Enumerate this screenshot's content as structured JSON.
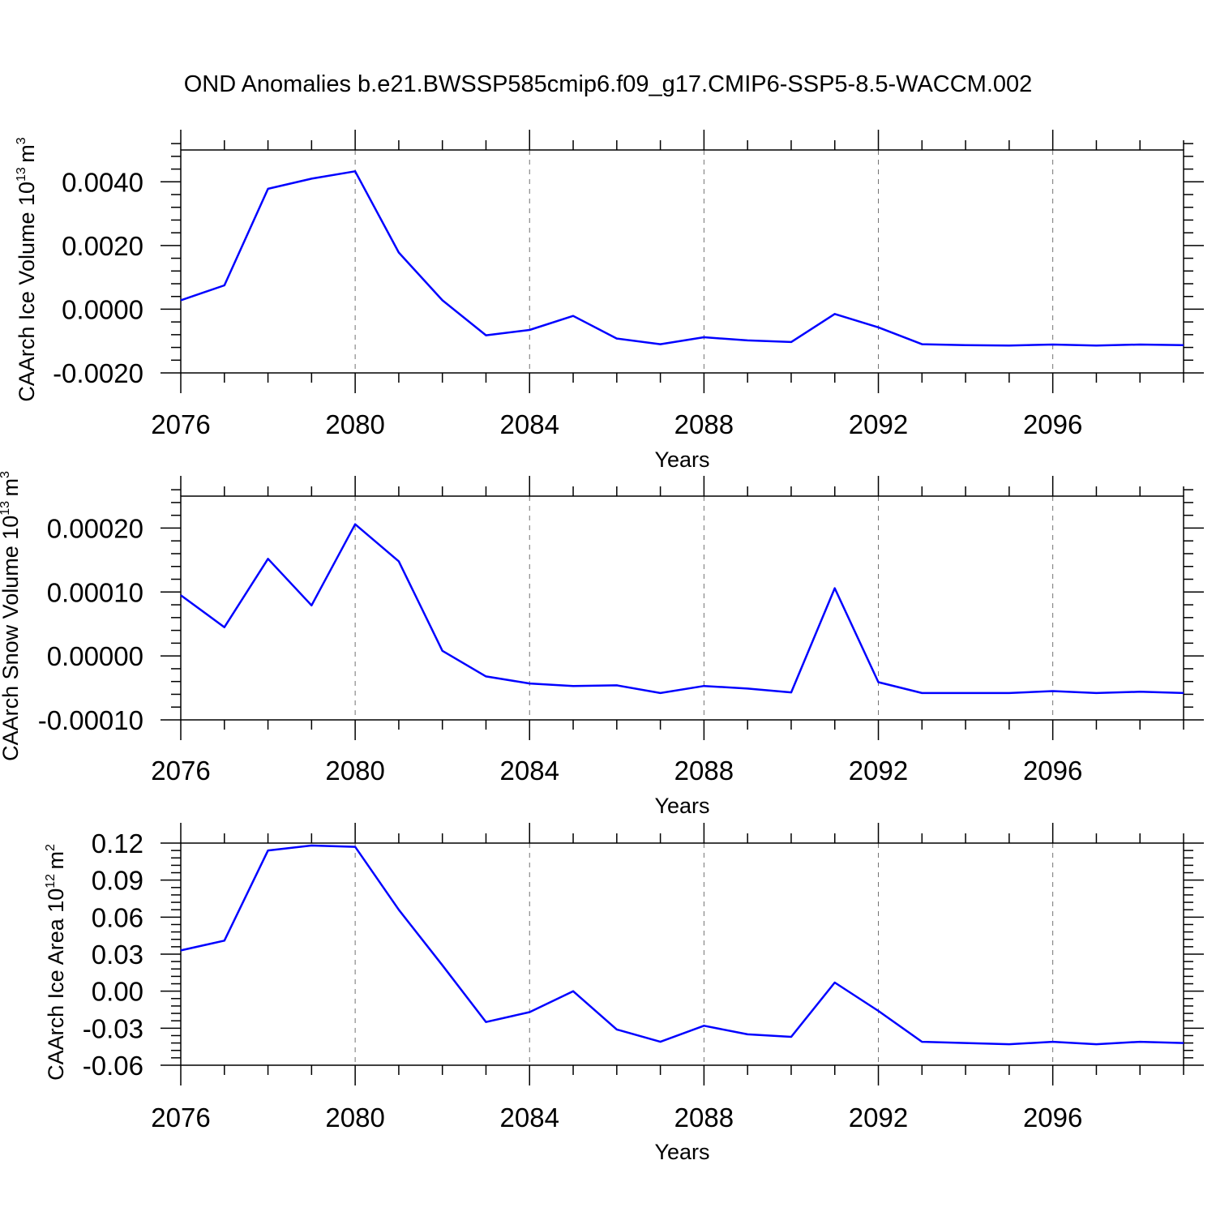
{
  "page": {
    "title": "OND Anomalies b.e21.BWSSP585cmip6.f09_g17.CMIP6-SSP5-8.5-WACCM.002"
  },
  "colors": {
    "series": "#0000ff",
    "axes": "#000000"
  },
  "chart_data": [
    {
      "type": "line",
      "ylabel_main": "CAArch Ice Volume 10",
      "ylabel_exp": "13",
      "ylabel_unit": "m",
      "ylabel_unit_exp": "3",
      "xlabel": "Years",
      "xlim": [
        2076,
        2099
      ],
      "ylim": [
        -0.002,
        0.005
      ],
      "xticks": [
        2076,
        2080,
        2084,
        2088,
        2092,
        2096
      ],
      "xtick_labels": [
        "2076",
        "2080",
        "2084",
        "2088",
        "2092",
        "2096"
      ],
      "yticks": [
        -0.002,
        0.0,
        0.002,
        0.004
      ],
      "ytick_labels": [
        "-0.0020",
        "0.0000",
        "0.0020",
        "0.0040"
      ],
      "grid": "vertical dashed at major x ticks",
      "x": [
        2076,
        2077,
        2078,
        2079,
        2080,
        2081,
        2082,
        2083,
        2084,
        2085,
        2086,
        2087,
        2088,
        2089,
        2090,
        2091,
        2092,
        2093,
        2094,
        2095,
        2096,
        2097,
        2098,
        2099
      ],
      "series": [
        {
          "values": [
            0.00028,
            0.00075,
            0.00378,
            0.0041,
            0.00433,
            0.00178,
            0.00028,
            -0.00082,
            -0.00065,
            -0.00021,
            -0.00092,
            -0.0011,
            -0.00088,
            -0.00098,
            -0.00103,
            -0.00015,
            -0.00057,
            -0.0011,
            -0.00113,
            -0.00114,
            -0.00111,
            -0.00114,
            -0.00111,
            -0.00113
          ]
        }
      ]
    },
    {
      "type": "line",
      "ylabel_main": "CAArch Snow Volume 10",
      "ylabel_exp": "13",
      "ylabel_unit": "m",
      "ylabel_unit_exp": "3",
      "xlabel": "Years",
      "xlim": [
        2076,
        2099
      ],
      "ylim": [
        -0.0001,
        0.00025
      ],
      "xticks": [
        2076,
        2080,
        2084,
        2088,
        2092,
        2096
      ],
      "xtick_labels": [
        "2076",
        "2080",
        "2084",
        "2088",
        "2092",
        "2096"
      ],
      "yticks": [
        -0.0001,
        0.0,
        0.0001,
        0.0002
      ],
      "ytick_labels": [
        "-0.00010",
        "0.00000",
        "0.00010",
        "0.00020"
      ],
      "grid": "vertical dashed at major x ticks",
      "x": [
        2076,
        2077,
        2078,
        2079,
        2080,
        2081,
        2082,
        2083,
        2084,
        2085,
        2086,
        2087,
        2088,
        2089,
        2090,
        2091,
        2092,
        2093,
        2094,
        2095,
        2096,
        2097,
        2098,
        2099
      ],
      "series": [
        {
          "values": [
            9.5e-05,
            4.5e-05,
            0.000152,
            7.9e-05,
            0.000206,
            0.000148,
            8e-06,
            -3.2e-05,
            -4.3e-05,
            -4.7e-05,
            -4.6e-05,
            -5.8e-05,
            -4.7e-05,
            -5.1e-05,
            -5.7e-05,
            0.000106,
            -4.1e-05,
            -5.8e-05,
            -5.8e-05,
            -5.8e-05,
            -5.5e-05,
            -5.8e-05,
            -5.6e-05,
            -5.8e-05
          ]
        }
      ]
    },
    {
      "type": "line",
      "ylabel_main": "CAArch Ice Area 10",
      "ylabel_exp": "12",
      "ylabel_unit": "m",
      "ylabel_unit_exp": "2",
      "xlabel": "Years",
      "xlim": [
        2076,
        2099
      ],
      "ylim": [
        -0.06,
        0.12
      ],
      "xticks": [
        2076,
        2080,
        2084,
        2088,
        2092,
        2096
      ],
      "xtick_labels": [
        "2076",
        "2080",
        "2084",
        "2088",
        "2092",
        "2096"
      ],
      "yticks": [
        -0.06,
        -0.03,
        0.0,
        0.03,
        0.06,
        0.09,
        0.12
      ],
      "ytick_labels": [
        "-0.06",
        "-0.03",
        "0.00",
        "0.03",
        "0.06",
        "0.09",
        "0.12"
      ],
      "grid": "vertical dashed at major x ticks",
      "x": [
        2076,
        2077,
        2078,
        2079,
        2080,
        2081,
        2082,
        2083,
        2084,
        2085,
        2086,
        2087,
        2088,
        2089,
        2090,
        2091,
        2092,
        2093,
        2094,
        2095,
        2096,
        2097,
        2098,
        2099
      ],
      "series": [
        {
          "values": [
            0.033,
            0.041,
            0.114,
            0.118,
            0.117,
            0.066,
            0.021,
            -0.025,
            -0.017,
            0.0,
            -0.031,
            -0.041,
            -0.028,
            -0.035,
            -0.037,
            0.007,
            -0.016,
            -0.041,
            -0.042,
            -0.043,
            -0.041,
            -0.043,
            -0.041,
            -0.042
          ]
        }
      ]
    }
  ]
}
